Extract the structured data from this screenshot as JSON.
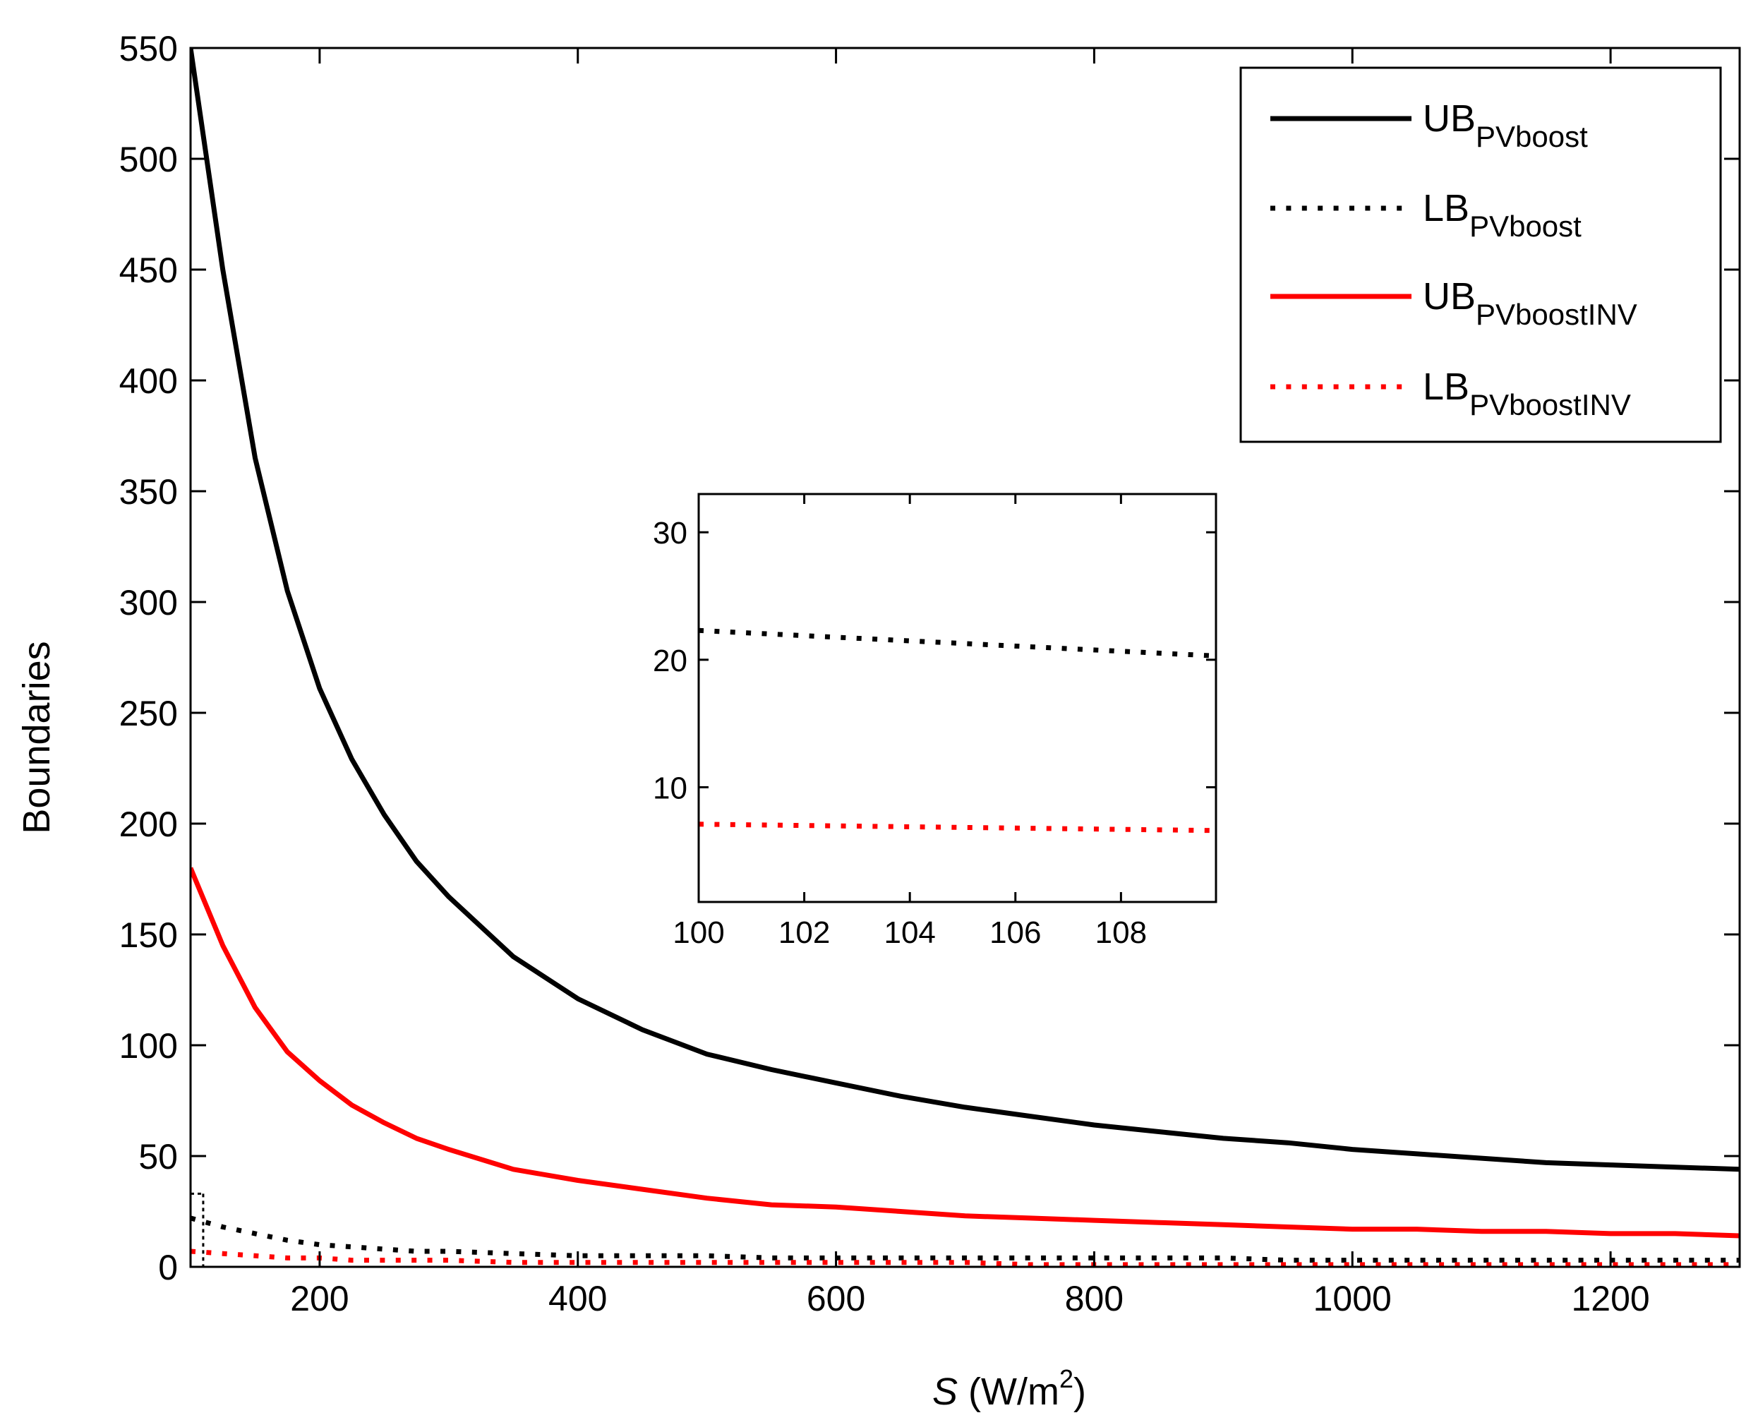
{
  "chart_data": {
    "type": "line",
    "title": "",
    "xlabel_var": "S",
    "xlabel_unit_pre": " (W/m",
    "xlabel_unit_sup": "2",
    "xlabel_unit_post": ")",
    "ylabel": "Boundaries",
    "xlim": [
      100,
      1300
    ],
    "ylim": [
      0,
      550
    ],
    "xticks": [
      200,
      400,
      600,
      800,
      1000,
      1200
    ],
    "yticks": [
      0,
      50,
      100,
      150,
      200,
      250,
      300,
      350,
      400,
      450,
      500,
      550
    ],
    "grid": false,
    "legend_position": "top-right",
    "x": [
      100,
      125,
      150,
      175,
      200,
      225,
      250,
      275,
      300,
      350,
      400,
      450,
      500,
      550,
      600,
      650,
      700,
      750,
      800,
      850,
      900,
      950,
      1000,
      1050,
      1100,
      1150,
      1200,
      1250,
      1300
    ],
    "series": [
      {
        "name_main": "UB",
        "name_sub": "PVboost",
        "color": "#000000",
        "style": "solid",
        "values": [
          550,
          450,
          365,
          305,
          261,
          229,
          204,
          183,
          167,
          140,
          121,
          107,
          96,
          89,
          83,
          77,
          72,
          68,
          64,
          61,
          58,
          56,
          53,
          51,
          49,
          47,
          46,
          45,
          44
        ]
      },
      {
        "name_main": "LB",
        "name_sub": "PVboost",
        "color": "#000000",
        "style": "dotted",
        "values": [
          22,
          18,
          15,
          12,
          10,
          9,
          8,
          7,
          7,
          6,
          5,
          5,
          5,
          4,
          4,
          4,
          4,
          4,
          4,
          4,
          4,
          3,
          3,
          3,
          3,
          3,
          3,
          3,
          3
        ]
      },
      {
        "name_main": "UB",
        "name_sub": "PVboostINV",
        "color": "#ff0000",
        "style": "solid",
        "values": [
          180,
          145,
          117,
          97,
          84,
          73,
          65,
          58,
          53,
          44,
          39,
          35,
          31,
          28,
          27,
          25,
          23,
          22,
          21,
          20,
          19,
          18,
          17,
          17,
          16,
          16,
          15,
          15,
          14
        ]
      },
      {
        "name_main": "LB",
        "name_sub": "PVboostINV",
        "color": "#ff0000",
        "style": "dotted",
        "values": [
          7,
          6,
          5,
          4,
          4,
          3,
          3,
          3,
          3,
          2,
          2,
          2,
          2,
          2,
          2,
          2,
          2,
          1,
          1,
          1,
          1,
          1,
          1,
          1,
          1,
          1,
          1,
          1,
          1
        ]
      }
    ],
    "inset": {
      "xlim": [
        100,
        109.8
      ],
      "ylim": [
        1,
        33
      ],
      "xticks": [
        100,
        102,
        104,
        106,
        108
      ],
      "yticks": [
        10,
        20,
        30
      ],
      "series": [
        {
          "color": "#000000",
          "style": "dotted",
          "x": [
            100,
            109.8
          ],
          "values": [
            22.3,
            20.3
          ]
        },
        {
          "color": "#ff0000",
          "style": "dotted",
          "x": [
            100,
            109.8
          ],
          "values": [
            7.1,
            6.6
          ]
        }
      ]
    }
  }
}
